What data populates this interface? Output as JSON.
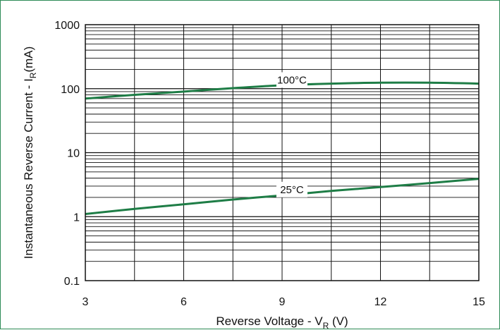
{
  "chart_data": {
    "type": "line",
    "title": "",
    "xlabel": {
      "main": "Reverse Voltage - V",
      "sub": "R",
      "unit": " (V)"
    },
    "ylabel": {
      "main": "Instantaneous Reverse Current - I",
      "sub": "R",
      "unit": "(mA)"
    },
    "xlim": [
      3,
      15
    ],
    "ylim": [
      0.1,
      1000
    ],
    "yscale": "log",
    "grid": true,
    "x_ticks": [
      3,
      6,
      9,
      12,
      15
    ],
    "x_tick_labels": [
      "3",
      "6",
      "9",
      "12",
      "15"
    ],
    "y_ticks": [
      0.1,
      1,
      10,
      100,
      1000
    ],
    "y_tick_labels": [
      "0.1",
      "1",
      "10",
      "100",
      "1000"
    ],
    "series": [
      {
        "name": "100°C",
        "color": "#1e7d46",
        "x": [
          3,
          4.5,
          6,
          7.5,
          9,
          10.5,
          12,
          13.5,
          15
        ],
        "y": [
          70,
          80,
          90,
          102,
          113,
          120,
          124,
          124,
          120
        ]
      },
      {
        "name": "25°C",
        "color": "#1e7d46",
        "x": [
          3,
          4.5,
          6,
          7.5,
          9,
          10.5,
          12,
          13.5,
          15
        ],
        "y": [
          1.1,
          1.32,
          1.56,
          1.85,
          2.15,
          2.52,
          2.9,
          3.35,
          3.9
        ]
      }
    ]
  }
}
